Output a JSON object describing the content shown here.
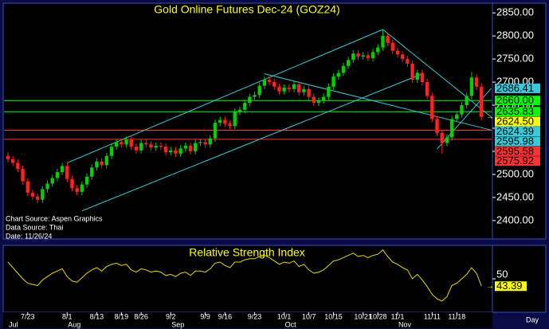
{
  "chart_data": {
    "type": "candlestick",
    "title": "Gold Online Futures Dec-24 (GOZ24)",
    "notes": [
      "Chart Source: Aspen Graphics",
      "Data Source: Thai",
      "Date: 11/26/24"
    ],
    "x_unit": "Day",
    "categories": [
      null,
      null,
      null,
      null,
      "7/23",
      null,
      null,
      null,
      null,
      null,
      null,
      null,
      "8/1",
      null,
      null,
      null,
      null,
      null,
      "8/13",
      null,
      null,
      null,
      null,
      "8/19",
      null,
      null,
      null,
      "8/26",
      null,
      null,
      null,
      null,
      null,
      "9/2",
      null,
      null,
      null,
      null,
      null,
      null,
      "9/9",
      null,
      null,
      null,
      "9/16",
      null,
      null,
      null,
      null,
      null,
      "9/23",
      null,
      null,
      null,
      null,
      null,
      "10/1",
      null,
      null,
      null,
      null,
      "10/7",
      null,
      null,
      null,
      null,
      "10/15",
      null,
      null,
      null,
      null,
      null,
      "10/21",
      null,
      null,
      "10/28",
      null,
      null,
      null,
      "11/1",
      null,
      null,
      null,
      null,
      null,
      null,
      "11/11",
      null,
      null,
      null,
      null,
      "11/18",
      null,
      null,
      null,
      null,
      null
    ],
    "months": [
      "Jul",
      null,
      null,
      null,
      null,
      null,
      null,
      null,
      null,
      null,
      null,
      null,
      "Aug",
      null,
      null,
      null,
      null,
      null,
      null,
      null,
      null,
      null,
      null,
      null,
      null,
      null,
      null,
      null,
      null,
      null,
      null,
      null,
      null,
      "Sep",
      null,
      null,
      null,
      null,
      null,
      null,
      null,
      null,
      null,
      null,
      null,
      null,
      null,
      null,
      null,
      null,
      null,
      null,
      null,
      null,
      null,
      null,
      "Oct",
      null,
      null,
      null,
      null,
      null,
      null,
      null,
      null,
      null,
      null,
      null,
      null,
      null,
      null,
      null,
      null,
      null,
      null,
      null,
      null,
      null,
      null,
      "Nov",
      null,
      null,
      null,
      null,
      null,
      null,
      null,
      null,
      null,
      null,
      null,
      null,
      null,
      null,
      null,
      null,
      null
    ],
    "ohlc": [
      [
        2540,
        2548,
        2526,
        2533
      ],
      [
        2533,
        2540,
        2518,
        2525
      ],
      [
        2525,
        2532,
        2505,
        2512
      ],
      [
        2512,
        2519,
        2478,
        2485
      ],
      [
        2485,
        2492,
        2453,
        2460
      ],
      [
        2460,
        2467,
        2445,
        2452
      ],
      [
        2452,
        2459,
        2438,
        2445
      ],
      [
        2445,
        2475,
        2438,
        2468
      ],
      [
        2468,
        2487,
        2461,
        2480
      ],
      [
        2480,
        2499,
        2473,
        2492
      ],
      [
        2492,
        2512,
        2485,
        2505
      ],
      [
        2505,
        2525,
        2498,
        2518
      ],
      [
        2518,
        2525,
        2483,
        2490
      ],
      [
        2490,
        2497,
        2463,
        2470
      ],
      [
        2470,
        2477,
        2455,
        2462
      ],
      [
        2462,
        2485,
        2455,
        2478
      ],
      [
        2478,
        2502,
        2471,
        2495
      ],
      [
        2495,
        2522,
        2488,
        2515
      ],
      [
        2515,
        2535,
        2508,
        2528
      ],
      [
        2528,
        2535,
        2513,
        2520
      ],
      [
        2520,
        2547,
        2513,
        2540
      ],
      [
        2540,
        2567,
        2533,
        2560
      ],
      [
        2560,
        2577,
        2553,
        2570
      ],
      [
        2570,
        2577,
        2558,
        2565
      ],
      [
        2565,
        2582,
        2558,
        2575
      ],
      [
        2575,
        2582,
        2553,
        2560
      ],
      [
        2560,
        2567,
        2545,
        2552
      ],
      [
        2552,
        2575,
        2545,
        2568
      ],
      [
        2568,
        2575,
        2558,
        2565
      ],
      [
        2565,
        2572,
        2551,
        2558
      ],
      [
        2558,
        2569,
        2551,
        2562
      ],
      [
        2562,
        2569,
        2553,
        2560
      ],
      [
        2560,
        2567,
        2541,
        2548
      ],
      [
        2548,
        2559,
        2541,
        2552
      ],
      [
        2552,
        2559,
        2538,
        2545
      ],
      [
        2545,
        2563,
        2538,
        2556
      ],
      [
        2556,
        2569,
        2549,
        2562
      ],
      [
        2562,
        2569,
        2543,
        2550
      ],
      [
        2550,
        2575,
        2543,
        2568
      ],
      [
        2568,
        2577,
        2561,
        2570
      ],
      [
        2570,
        2577,
        2558,
        2565
      ],
      [
        2565,
        2585,
        2558,
        2578
      ],
      [
        2578,
        2619,
        2571,
        2612
      ],
      [
        2612,
        2625,
        2605,
        2618
      ],
      [
        2618,
        2625,
        2603,
        2610
      ],
      [
        2610,
        2617,
        2598,
        2605
      ],
      [
        2605,
        2642,
        2598,
        2635
      ],
      [
        2635,
        2647,
        2628,
        2640
      ],
      [
        2640,
        2662,
        2633,
        2655
      ],
      [
        2655,
        2675,
        2648,
        2668
      ],
      [
        2668,
        2679,
        2661,
        2672
      ],
      [
        2672,
        2699,
        2665,
        2692
      ],
      [
        2692,
        2712,
        2685,
        2705
      ],
      [
        2705,
        2712,
        2693,
        2700
      ],
      [
        2700,
        2707,
        2683,
        2690
      ],
      [
        2690,
        2697,
        2673,
        2680
      ],
      [
        2680,
        2695,
        2673,
        2688
      ],
      [
        2688,
        2695,
        2678,
        2685
      ],
      [
        2685,
        2702,
        2678,
        2695
      ],
      [
        2695,
        2702,
        2671,
        2678
      ],
      [
        2678,
        2692,
        2671,
        2685
      ],
      [
        2685,
        2692,
        2661,
        2668
      ],
      [
        2668,
        2675,
        2648,
        2655
      ],
      [
        2655,
        2667,
        2648,
        2660
      ],
      [
        2660,
        2675,
        2653,
        2668
      ],
      [
        2668,
        2697,
        2661,
        2690
      ],
      [
        2690,
        2719,
        2683,
        2712
      ],
      [
        2712,
        2727,
        2705,
        2720
      ],
      [
        2720,
        2742,
        2713,
        2735
      ],
      [
        2735,
        2755,
        2728,
        2748
      ],
      [
        2748,
        2769,
        2741,
        2762
      ],
      [
        2762,
        2769,
        2748,
        2755
      ],
      [
        2755,
        2765,
        2748,
        2758
      ],
      [
        2758,
        2765,
        2745,
        2752
      ],
      [
        2752,
        2772,
        2745,
        2765
      ],
      [
        2765,
        2782,
        2758,
        2775
      ],
      [
        2775,
        2812,
        2768,
        2800
      ],
      [
        2800,
        2807,
        2778,
        2785
      ],
      [
        2785,
        2792,
        2761,
        2768
      ],
      [
        2768,
        2775,
        2753,
        2760
      ],
      [
        2760,
        2767,
        2743,
        2750
      ],
      [
        2750,
        2757,
        2733,
        2740
      ],
      [
        2740,
        2747,
        2698,
        2705
      ],
      [
        2705,
        2727,
        2698,
        2720
      ],
      [
        2720,
        2727,
        2693,
        2700
      ],
      [
        2700,
        2707,
        2663,
        2670
      ],
      [
        2670,
        2677,
        2613,
        2620
      ],
      [
        2620,
        2627,
        2583,
        2590
      ],
      [
        2590,
        2597,
        2545,
        2568
      ],
      [
        2568,
        2587,
        2561,
        2580
      ],
      [
        2580,
        2627,
        2573,
        2620
      ],
      [
        2620,
        2637,
        2613,
        2630
      ],
      [
        2630,
        2657,
        2623,
        2650
      ],
      [
        2650,
        2677,
        2643,
        2670
      ],
      [
        2670,
        2722,
        2663,
        2710
      ],
      [
        2710,
        2717,
        2683,
        2690
      ],
      [
        2690,
        2697,
        2617,
        2624.5
      ]
    ],
    "up_color": "#00d000",
    "down_color": "#ff2020",
    "ylim": [
      2360,
      2871
    ],
    "yticks": [
      {
        "value": 2400,
        "label": "2400.00"
      },
      {
        "value": 2450,
        "label": "2450.00"
      },
      {
        "value": 2500,
        "label": "2500.00"
      },
      {
        "value": 2550,
        "label": "2550.00"
      },
      {
        "value": 2600,
        "label": "2600.00"
      },
      {
        "value": 2650,
        "label": "2650.00"
      },
      {
        "value": 2700,
        "label": "2700.00"
      },
      {
        "value": 2750,
        "label": "2750.00"
      },
      {
        "value": 2800,
        "label": "2800.00"
      },
      {
        "value": 2850,
        "label": "2850.00"
      }
    ],
    "levels": [
      {
        "value": 2660,
        "label": "2660.00",
        "color": "#00ff00"
      },
      {
        "value": 2635.83,
        "label": "2635.83",
        "color": "#00ff00"
      },
      {
        "value": 2595.58,
        "label": "2595.58",
        "color": "#ff3030"
      },
      {
        "value": 2575.92,
        "label": "2575.92",
        "color": "#ff3030"
      }
    ],
    "trendline_color": "#33ccdd",
    "trendlines": [
      {
        "start": [
          12,
          2525
        ],
        "end": [
          76,
          2814
        ]
      },
      {
        "start": [
          15,
          2421
        ],
        "end": [
          84,
          2718
        ]
      },
      {
        "start": [
          52,
          2718
        ],
        "end": [
          98,
          2595.98
        ],
        "label": "2595.98"
      },
      {
        "start": [
          76,
          2814
        ],
        "end": [
          98,
          2624.39
        ],
        "label": "2624.39"
      },
      {
        "start": [
          87,
          2555
        ],
        "end": [
          98,
          2686.41
        ],
        "label": "2686.41"
      }
    ],
    "last_price": {
      "value": 2624.5,
      "label": "2624.50",
      "color": "#ffff00"
    },
    "rsi": {
      "title": "Relative Strength Index",
      "color": "#e8d800",
      "ylim": [
        20,
        80
      ],
      "yticks": [
        50
      ],
      "values": [
        65,
        60,
        55,
        50,
        46,
        45,
        44,
        49,
        52,
        55,
        57,
        59,
        52,
        48,
        47,
        51,
        55,
        58,
        60,
        57,
        61,
        63,
        64,
        62,
        63,
        58,
        56,
        59,
        58,
        56,
        57,
        56,
        53,
        54,
        52,
        55,
        56,
        53,
        57,
        57,
        56,
        59,
        64,
        65,
        62,
        60,
        65,
        65,
        67,
        68,
        68,
        70,
        71,
        69,
        66,
        63,
        65,
        64,
        66,
        61,
        63,
        58,
        55,
        56,
        58,
        62,
        66,
        67,
        69,
        71,
        73,
        70,
        71,
        69,
        71,
        72,
        76,
        70,
        65,
        63,
        60,
        58,
        50,
        54,
        49,
        43,
        36,
        32,
        30,
        34,
        44,
        46,
        50,
        54,
        60,
        55,
        43.39
      ],
      "last_label": "43.39"
    }
  }
}
